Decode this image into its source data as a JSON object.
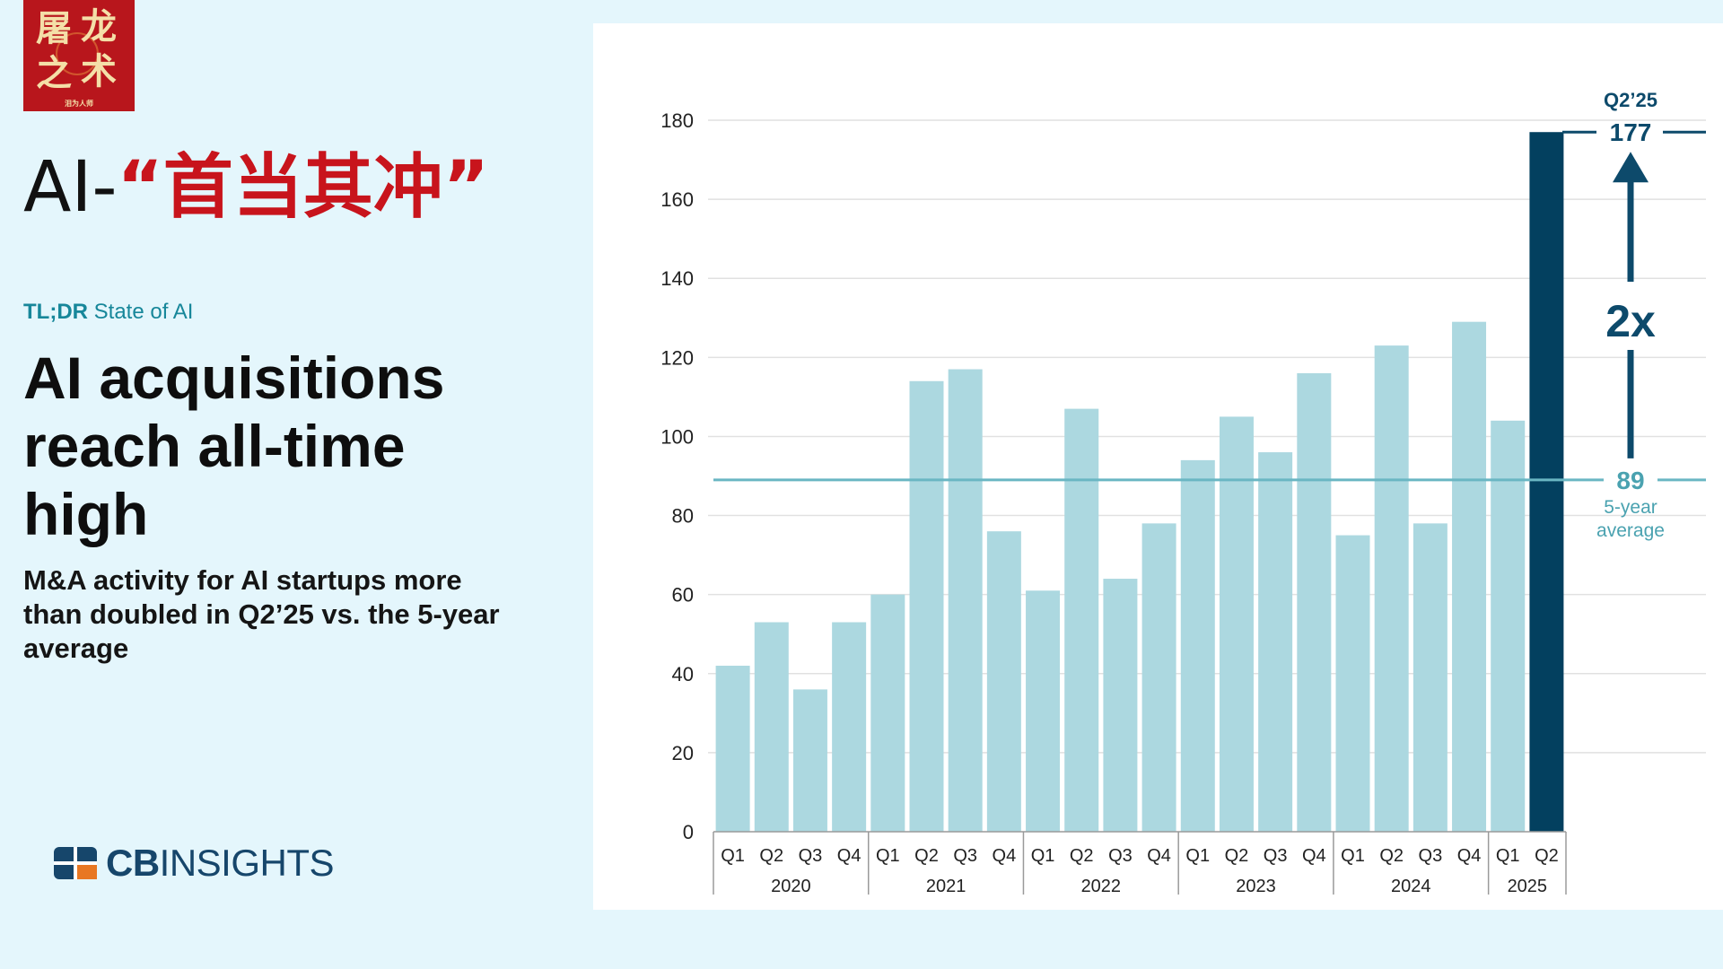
{
  "badge": {
    "chars": [
      "屠",
      "龙",
      "之",
      "术"
    ],
    "tiny": "泪为人师"
  },
  "title": {
    "prefix": "AI-",
    "highlight": "“首当其冲”"
  },
  "kicker": {
    "bold": "TL;DR",
    "rest": " State of AI"
  },
  "headline": "AI acquisitions reach all-time high",
  "subhead": "M&A activity for AI startups more than doubled in Q2’25 vs. the 5-year average",
  "brand": {
    "bold": "CB",
    "rest": "INSIGHTS"
  },
  "colors": {
    "bar": "#acd8e0",
    "highlight_bar": "#03405f",
    "average_line": "#6ab6c3",
    "average_text": "#4aa2b0",
    "annotation": "#0d4a6b"
  },
  "chart_data": {
    "type": "bar",
    "categories": [
      "Q1",
      "Q2",
      "Q3",
      "Q4",
      "Q1",
      "Q2",
      "Q3",
      "Q4",
      "Q1",
      "Q2",
      "Q3",
      "Q4",
      "Q1",
      "Q2",
      "Q3",
      "Q4",
      "Q1",
      "Q2",
      "Q3",
      "Q4",
      "Q1",
      "Q2"
    ],
    "groups": [
      {
        "label": "2020",
        "count": 4
      },
      {
        "label": "2021",
        "count": 4
      },
      {
        "label": "2022",
        "count": 4
      },
      {
        "label": "2023",
        "count": 4
      },
      {
        "label": "2024",
        "count": 4
      },
      {
        "label": "2025",
        "count": 2
      }
    ],
    "values": [
      42,
      53,
      36,
      53,
      60,
      114,
      117,
      76,
      61,
      107,
      64,
      78,
      94,
      105,
      96,
      116,
      75,
      123,
      78,
      129,
      104,
      177
    ],
    "highlight_index": 21,
    "ylim": [
      0,
      180
    ],
    "yticks": [
      0,
      20,
      40,
      60,
      80,
      100,
      120,
      140,
      160,
      180
    ],
    "grid": true,
    "reference_line": {
      "value": 89,
      "label": "89",
      "caption_line1": "5-year",
      "caption_line2": "average"
    },
    "callout": {
      "label": "Q2’25",
      "value": "177",
      "multiplier": "2x"
    }
  }
}
